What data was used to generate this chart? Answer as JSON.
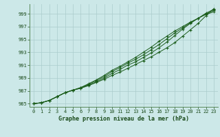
{
  "xlabel": "Graphe pression niveau de la mer (hPa)",
  "xlim": [
    -0.5,
    23.5
  ],
  "ylim": [
    984.5,
    1000.5
  ],
  "yticks": [
    985,
    987,
    989,
    991,
    993,
    995,
    997,
    999
  ],
  "xticks": [
    0,
    1,
    2,
    3,
    4,
    5,
    6,
    7,
    8,
    9,
    10,
    11,
    12,
    13,
    14,
    15,
    16,
    17,
    18,
    19,
    20,
    21,
    22,
    23
  ],
  "background_color": "#cce8e8",
  "grid_color": "#aacccc",
  "line_color": "#1a5c1a",
  "text_color": "#1a4a1a",
  "series": [
    [
      985.0,
      985.15,
      985.5,
      986.1,
      986.7,
      987.1,
      987.4,
      987.8,
      988.3,
      988.8,
      989.4,
      989.9,
      990.5,
      991.1,
      991.7,
      992.3,
      993.0,
      993.7,
      994.5,
      995.5,
      996.5,
      997.5,
      998.7,
      999.8
    ],
    [
      985.0,
      985.15,
      985.5,
      986.1,
      986.7,
      987.1,
      987.4,
      987.9,
      988.4,
      989.0,
      989.7,
      990.3,
      991.0,
      991.5,
      992.2,
      992.9,
      993.7,
      994.6,
      995.6,
      996.6,
      997.5,
      998.3,
      999.1,
      999.7
    ],
    [
      985.0,
      985.15,
      985.5,
      986.1,
      986.7,
      987.1,
      987.5,
      988.0,
      988.6,
      989.2,
      990.0,
      990.6,
      991.3,
      991.9,
      992.6,
      993.4,
      994.2,
      995.1,
      996.0,
      996.8,
      997.6,
      998.3,
      999.0,
      999.5
    ],
    [
      985.0,
      985.15,
      985.5,
      986.1,
      986.7,
      987.1,
      987.5,
      988.1,
      988.7,
      989.4,
      990.2,
      990.8,
      991.5,
      992.2,
      993.0,
      993.8,
      994.7,
      995.5,
      996.3,
      997.0,
      997.7,
      998.3,
      998.9,
      999.3
    ]
  ]
}
